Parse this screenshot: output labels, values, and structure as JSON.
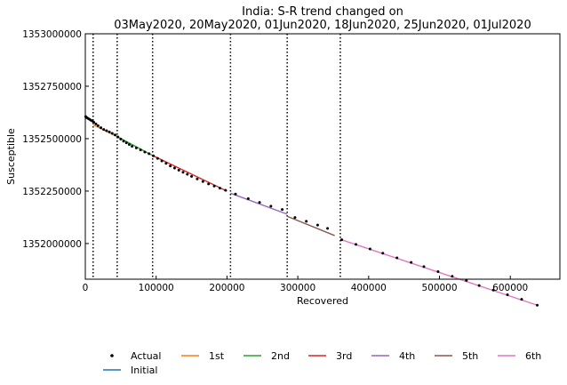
{
  "chart_data": {
    "type": "scatter",
    "title_line1": "India: S-R trend changed on",
    "title_line2": "03May2020, 20May2020, 01Jun2020, 18Jun2020, 25Jun2020, 01Jul2020",
    "xlabel": "Recovered",
    "ylabel": "Susceptible",
    "xlim": [
      0,
      670000
    ],
    "ylim": [
      1351830000,
      1353000000
    ],
    "log_scale_y": false,
    "grid": false,
    "x_ticks": [
      0,
      100000,
      200000,
      300000,
      400000,
      500000,
      600000
    ],
    "x_tick_labels": [
      "0",
      "100000",
      "200000",
      "300000",
      "400000",
      "500000",
      "600000"
    ],
    "y_ticks": [
      1352000000,
      1352250000,
      1352500000,
      1352750000,
      1353000000
    ],
    "y_tick_labels": [
      "1352000000",
      "1352250000",
      "1352500000",
      "1352750000",
      "1353000000"
    ],
    "change_points_x": [
      11000,
      45000,
      95000,
      205000,
      285000,
      360000
    ],
    "legend_position": "bottom",
    "actual": {
      "name": "Actual",
      "color": "#000000",
      "x": [
        500,
        2000,
        4000,
        6000,
        8000,
        10000,
        12000,
        15000,
        18000,
        22000,
        26000,
        30000,
        34000,
        38000,
        42000,
        46000,
        50000,
        54000,
        58000,
        62000,
        66000,
        72000,
        78000,
        84000,
        90000,
        96000,
        102000,
        108000,
        114000,
        120000,
        126000,
        132000,
        138000,
        144000,
        150000,
        158000,
        166000,
        174000,
        182000,
        190000,
        198000,
        212000,
        230000,
        246000,
        262000,
        278000,
        296000,
        312000,
        328000,
        342000,
        362000,
        382000,
        402000,
        420000,
        440000,
        460000,
        478000,
        498000,
        518000,
        538000,
        556000,
        576000,
        596000,
        616000,
        638000
      ],
      "y": [
        1352605000,
        1352600000,
        1352596000,
        1352592000,
        1352588000,
        1352584000,
        1352578000,
        1352570000,
        1352562000,
        1352552000,
        1352544000,
        1352538000,
        1352532000,
        1352525000,
        1352518000,
        1352508000,
        1352498000,
        1352488000,
        1352480000,
        1352472000,
        1352464000,
        1352456000,
        1352446000,
        1352436000,
        1352428000,
        1352418000,
        1352406000,
        1352394000,
        1352382000,
        1352370000,
        1352360000,
        1352350000,
        1352340000,
        1352330000,
        1352320000,
        1352308000,
        1352296000,
        1352284000,
        1352274000,
        1352264000,
        1352254000,
        1352236000,
        1352214000,
        1352196000,
        1352178000,
        1352162000,
        1352124000,
        1352106000,
        1352088000,
        1352072000,
        1352018000,
        1351996000,
        1351974000,
        1351954000,
        1351932000,
        1351910000,
        1351890000,
        1351866000,
        1351844000,
        1351824000,
        1351800000,
        1351778000,
        1351756000,
        1351734000,
        1351706000
      ]
    },
    "series": [
      {
        "name": "Initial",
        "color": "#1f77b4",
        "x": [
          0,
          11000
        ],
        "y": [
          1352610000,
          1352580000
        ]
      },
      {
        "name": "1st",
        "color": "#ff7f0e",
        "x": [
          11000,
          45000
        ],
        "y": [
          1352566000,
          1352510000
        ]
      },
      {
        "name": "2nd",
        "color": "#2ca02c",
        "x": [
          45000,
          95000
        ],
        "y": [
          1352510000,
          1352420000
        ]
      },
      {
        "name": "3rd",
        "color": "#d62728",
        "x": [
          95000,
          200000
        ],
        "y": [
          1352420000,
          1352250000
        ]
      },
      {
        "name": "4th",
        "color": "#9467bd",
        "x": [
          205000,
          285000
        ],
        "y": [
          1352240000,
          1352140000
        ]
      },
      {
        "name": "5th",
        "color": "#8c564b",
        "x": [
          285000,
          352000
        ],
        "y": [
          1352130000,
          1352038000
        ]
      },
      {
        "name": "6th",
        "color": "#e377c2",
        "x": [
          360000,
          638000
        ],
        "y": [
          1352020000,
          1351706000
        ]
      }
    ]
  }
}
